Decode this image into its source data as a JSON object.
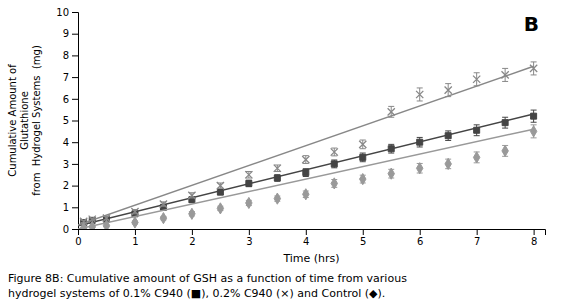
{
  "chart_data": {
    "type": "scatter",
    "title": "B",
    "xlabel": "Time (hrs)",
    "ylabel": [
      "Cumulative Amount of",
      "Glutathione",
      "from  Hydrogel Systems  (mg)"
    ],
    "annotations": [
      "Figure 8B: Cumulative amount of GSH as a function of time from various",
      "hydrogel systems of 0.1% C940 (■), 0.2% C940 (×) and Control (◆)."
    ],
    "xlim": [
      0,
      8.2
    ],
    "ylim": [
      0,
      10
    ],
    "xticks": [
      0,
      1,
      2,
      3,
      4,
      5,
      6,
      7,
      8
    ],
    "yticks": [
      0,
      1,
      2,
      3,
      4,
      5,
      6,
      7,
      8,
      9,
      10
    ],
    "grid": false,
    "x": [
      0.1,
      0.25,
      0.5,
      1.0,
      1.5,
      2.0,
      2.5,
      3.0,
      3.5,
      4.0,
      4.5,
      5.0,
      5.5,
      6.0,
      6.5,
      7.0,
      7.5,
      8.0
    ],
    "series": [
      {
        "color": "#444444",
        "marker": "square",
        "values": [
          0.3,
          0.4,
          0.45,
          0.7,
          1.0,
          1.35,
          1.7,
          2.1,
          2.35,
          2.6,
          3.0,
          3.3,
          3.7,
          4.0,
          4.3,
          4.55,
          4.9,
          5.2
        ],
        "errors": [
          0.05,
          0.05,
          0.08,
          0.1,
          0.1,
          0.12,
          0.12,
          0.15,
          0.15,
          0.18,
          0.18,
          0.2,
          0.2,
          0.22,
          0.22,
          0.25,
          0.25,
          0.28
        ],
        "trend_x": [
          0.0,
          8.0
        ],
        "trend_y": [
          0.15,
          5.3
        ]
      },
      {
        "color": "#888888",
        "marker": "x",
        "values": [
          0.35,
          0.45,
          0.5,
          0.8,
          1.15,
          1.55,
          2.0,
          2.5,
          2.8,
          3.2,
          3.55,
          3.9,
          5.4,
          6.2,
          6.4,
          6.9,
          7.1,
          7.4
        ],
        "errors": [
          0.05,
          0.05,
          0.08,
          0.1,
          0.1,
          0.12,
          0.12,
          0.15,
          0.15,
          0.18,
          0.18,
          0.2,
          0.25,
          0.3,
          0.3,
          0.3,
          0.3,
          0.3
        ],
        "trend_x": [
          0.0,
          8.0
        ],
        "trend_y": [
          0.18,
          7.5
        ]
      },
      {
        "color": "#999999",
        "marker": "diamond",
        "values": [
          0.05,
          0.1,
          0.15,
          0.3,
          0.5,
          0.7,
          0.95,
          1.2,
          1.4,
          1.6,
          2.1,
          2.3,
          2.55,
          2.8,
          3.0,
          3.3,
          3.6,
          4.5
        ],
        "errors": [
          0.03,
          0.03,
          0.05,
          0.07,
          0.08,
          0.1,
          0.1,
          0.12,
          0.12,
          0.15,
          0.18,
          0.18,
          0.2,
          0.22,
          0.22,
          0.25,
          0.25,
          0.3
        ],
        "trend_x": [
          0.0,
          8.0
        ],
        "trend_y": [
          0.0,
          4.6
        ]
      }
    ]
  }
}
